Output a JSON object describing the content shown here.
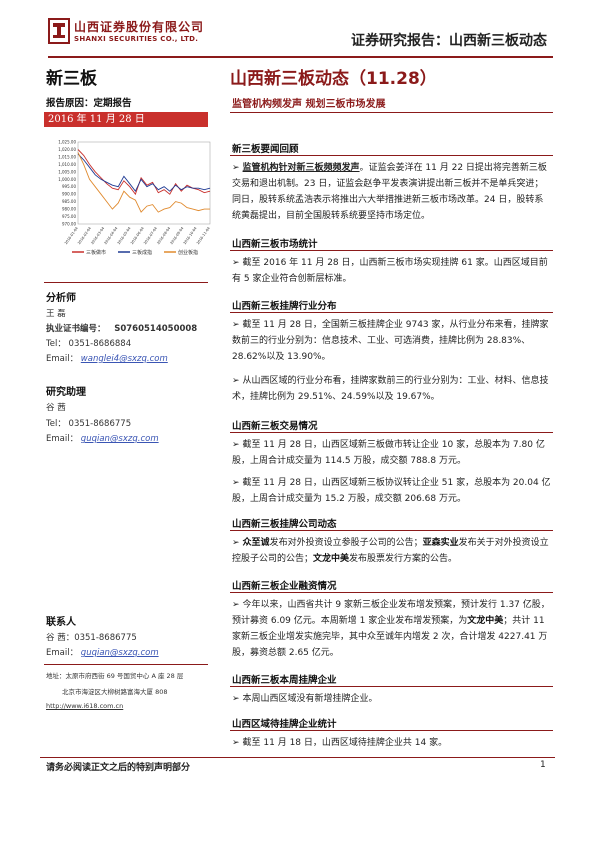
{
  "header": {
    "company_cn": "山西证券股份有限公司",
    "company_en": "SHANXI SECURITIES CO., LTD.",
    "title": "证券研究报告：山西新三板动态",
    "brand_color": "#8b1a1a"
  },
  "left": {
    "section_name": "新三板",
    "report_reason": "报告原因：定期报告",
    "date": "2016 年 11 月 28 日",
    "chart_data": {
      "type": "line",
      "y_ticks": [
        "1,025.00",
        "1,020.00",
        "1,015.00",
        "1,010.00",
        "1,005.00",
        "1,000.00",
        "995.00",
        "990.00",
        "985.00",
        "980.00",
        "975.00",
        "970.00"
      ],
      "ylim": [
        970,
        1025
      ],
      "x_ticks": [
        "2016-01-04",
        "2016-02-04",
        "2016-03-04",
        "2016-04-04",
        "2016-05-04",
        "2016-06-04",
        "2016-07-04",
        "2016-08-04",
        "2016-09-04",
        "2016-10-04",
        "2016-11-04"
      ],
      "series": [
        {
          "name": "三板做市",
          "color": "#c9302c",
          "values": [
            1020,
            1016,
            1010,
            1005,
            1001,
            997,
            994,
            993,
            999,
            995,
            990,
            1001,
            996,
            998,
            991,
            993,
            990,
            997,
            992,
            996,
            994,
            993,
            991,
            992
          ]
        },
        {
          "name": "三板成指",
          "color": "#1f3a93",
          "values": [
            1017,
            1013,
            1008,
            1003,
            1000,
            998,
            996,
            995,
            1002,
            997,
            992,
            1000,
            995,
            997,
            993,
            995,
            992,
            996,
            993,
            995,
            994,
            994,
            993,
            994
          ]
        },
        {
          "name": "创业板指",
          "color": "#e08a2e",
          "values": [
            1018,
            1010,
            1000,
            995,
            990,
            985,
            980,
            984,
            992,
            988,
            986,
            978,
            982,
            983,
            978,
            980,
            981,
            985,
            984,
            981,
            980,
            979,
            980,
            980
          ]
        }
      ]
    },
    "analyst": {
      "heading": "分析师",
      "name": "王 磊",
      "cert_label": "执业证书编号：",
      "cert_no": "S0760514050008",
      "tel": "Tel：  0351-8686884",
      "email_label": "Email：",
      "email": "wanglei4@sxzq.com"
    },
    "assistant": {
      "heading": "研究助理",
      "name": "谷 茜",
      "tel": "Tel：  0351-8686775",
      "email_label": "Email：",
      "email": "guqian@sxzq.com"
    },
    "contact": {
      "heading": "联系人",
      "line1": "谷 茜：0351-8686775",
      "email_label": "Email：",
      "email": "guqian@sxzq.com",
      "addr1": "地址：太原市府西街 69 号国贸中心 A 座 28 层",
      "addr2": "北京市海淀区大柳树路富海大厦 808",
      "web": "http://www.i618.com.cn"
    }
  },
  "main": {
    "title": "山西新三板动态（11.28）",
    "subtitle": "监管机构频发声 规划三板市场发展",
    "sections": [
      {
        "heading": "新三板要闻回顾",
        "paras": [
          {
            "lead": "监管机构针对新三板频频发声",
            "text": "。证监会姜洋在 11 月 22 日提出将完善新三板交易和退出机制。23 日，证监会赵争平发表演讲提出新三板并不是单兵突进；同日，股转系统孟浩表示将推出六大举措推进新三板市场改革。24 日，股转系统黄磊提出，目前全国股转系统要坚持市场定位。"
          }
        ]
      },
      {
        "heading": "山西新三板市场统计",
        "paras": [
          {
            "lead": "",
            "text": "截至 2016 年 11 月 28 日，山西新三板市场实现挂牌 61 家。山西区域目前有 5 家企业符合创新层标准。"
          }
        ]
      },
      {
        "heading": "山西新三板挂牌行业分布",
        "paras": [
          {
            "lead": "",
            "text": "截至 11 月 28 日，全国新三板挂牌企业 9743 家，从行业分布来看，挂牌家数前三的行业分别为：信息技术、工业、可选消费，挂牌比例为 28.83%、28.62%以及 13.90%。"
          },
          {
            "lead": "",
            "text": "从山西区域的行业分布看，挂牌家数前三的行业分别为：工业、材料、信息技术，挂牌比例为 29.51%、24.59%以及 19.67%。"
          }
        ]
      },
      {
        "heading": "山西新三板交易情况",
        "paras": [
          {
            "lead": "",
            "text": "截至 11 月 28 日，山西区域新三板做市转让企业 10 家，总股本为 7.80 亿股，上周合计成交量为 114.5 万股，成交额 788.8 万元。"
          },
          {
            "lead": "",
            "text": "截至 11 月 28 日，山西区域新三板协议转让企业 51 家，总股本为 20.04 亿股，上周合计成交量为 15.2 万股，成交额 206.68 万元。"
          }
        ]
      },
      {
        "heading": "山西新三板挂牌公司动态",
        "paras": [
          {
            "lead": "",
            "rich": [
              [
                "b",
                "众至诚"
              ],
              [
                "t",
                "发布对外投资设立参股子公司的公告；"
              ],
              [
                "b",
                "亚森实业"
              ],
              [
                "t",
                "发布关于对外投资设立控股子公司的公告；"
              ],
              [
                "b",
                "文龙中美"
              ],
              [
                "t",
                "发布股票发行方案的公告。"
              ]
            ]
          }
        ]
      },
      {
        "heading": "山西新三板企业融资情况",
        "paras": [
          {
            "lead": "",
            "rich": [
              [
                "t",
                "今年以来，山西省共计 9 家新三板企业发布增发预案，预计发行 1.37 亿股，预计募资 6.09 亿元。本周新增 1 家企业发布增发预案，为"
              ],
              [
                "b",
                "文龙中美"
              ],
              [
                "t",
                "；共计 11 家新三板企业增发实施完毕，其中众至诚年内增发 2 次，合计增发 4227.41 万股，募资总额 2.65 亿元。"
              ]
            ]
          }
        ]
      },
      {
        "heading": "山西新三板本周挂牌企业",
        "paras": [
          {
            "lead": "",
            "text": "本周山西区域没有新增挂牌企业。"
          }
        ]
      },
      {
        "heading": "山西区域待挂牌企业统计",
        "paras": [
          {
            "lead": "",
            "text": "截至 11 月 18 日，山西区域待挂牌企业共 14 家。"
          }
        ]
      }
    ]
  },
  "footer": {
    "note": "请务必阅读正文之后的特别声明部分",
    "page": "1"
  },
  "glyphs": {
    "arrow": "➢"
  }
}
